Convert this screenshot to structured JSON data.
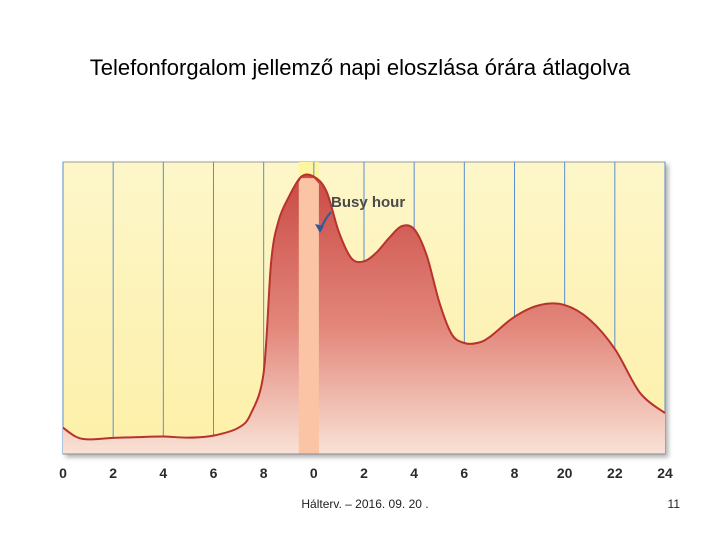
{
  "slide": {
    "title": "Telefonforgalom jellemző napi eloszlása órára átlagolva",
    "footer": "Hálterv. – 2016. 09. 20 .",
    "page_number": "11"
  },
  "chart_data": {
    "type": "area",
    "title": "",
    "xlabel": "",
    "ylabel": "",
    "x_tick_labels": [
      "0",
      "2",
      "4",
      "6",
      "8",
      "0",
      "2",
      "4",
      "6",
      "8",
      "20",
      "22",
      "24"
    ],
    "xlim": [
      0,
      24
    ],
    "ylim": [
      0,
      100
    ],
    "grid": "vertical",
    "x": [
      0,
      0.5,
      1,
      2,
      3,
      4,
      5,
      6,
      7,
      7.5,
      8,
      8.3,
      8.6,
      9,
      9.5,
      10,
      10.5,
      11,
      11.5,
      12,
      12.5,
      13,
      13.5,
      14,
      14.5,
      15,
      15.5,
      16,
      16.5,
      17,
      18,
      19,
      20,
      21,
      22,
      23,
      24
    ],
    "values": [
      9,
      6,
      5,
      5.5,
      5.8,
      6,
      5.6,
      6.3,
      9,
      14,
      28,
      66,
      80,
      88,
      95,
      95,
      90,
      76,
      67,
      66,
      69,
      74,
      78,
      77,
      68,
      52,
      41,
      38,
      38,
      40,
      47,
      51,
      51,
      46,
      36,
      21,
      14
    ],
    "busy_hour": {
      "label": "Busy hour",
      "start": 9.4,
      "end": 10.2
    },
    "colors": {
      "background_top": "#fdf6c9",
      "background_bottom": "#fdf0a8",
      "area_top": "#c94a45",
      "area_bottom": "#f9e2d6",
      "outline": "#b8322e",
      "grid": "#5b8fcf",
      "busy_band": "#fff4a0",
      "busy_strip": "#fbc4a4"
    }
  }
}
